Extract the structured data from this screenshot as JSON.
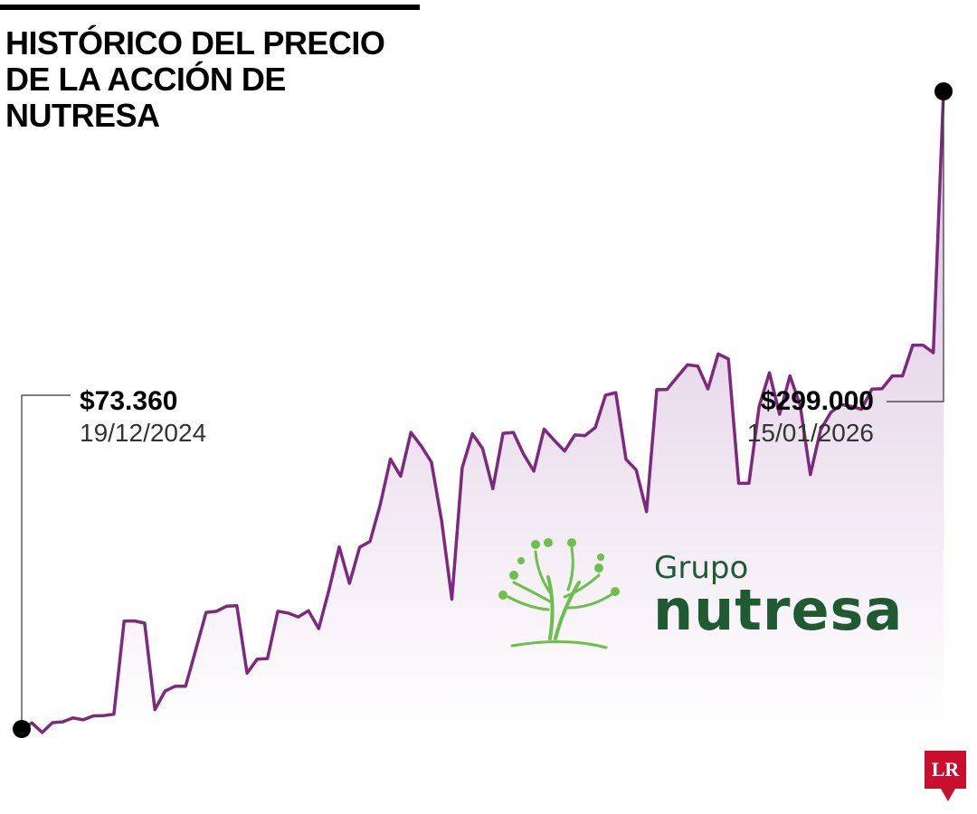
{
  "header": {
    "title": "HISTÓRICO DEL PRECIO DE LA ACCIÓN DE NUTRESA"
  },
  "chart_data": {
    "type": "area",
    "title": "HISTÓRICO DEL PRECIO DE LA ACCIÓN DE NUTRESA",
    "xlabel": "",
    "ylabel": "",
    "x_range": [
      "19/12/2024",
      "15/01/2026"
    ],
    "ylim": [
      73360,
      299000
    ],
    "grid": false,
    "legend": "none",
    "line_color": "#7b2a7e",
    "fill_color_top": "#dcc6e0",
    "fill_color_bottom": "#ffffff",
    "values": [
      73360,
      75500,
      72100,
      75600,
      75900,
      77300,
      76600,
      78000,
      78100,
      78600,
      111500,
      111600,
      110800,
      80200,
      86800,
      88500,
      88500,
      101500,
      114600,
      115000,
      116800,
      117000,
      93100,
      98100,
      98300,
      115000,
      114400,
      113000,
      115200,
      108900,
      122600,
      137800,
      124900,
      137700,
      139700,
      152700,
      168900,
      162800,
      178300,
      173500,
      167800,
      147000,
      119300,
      165800,
      177800,
      172600,
      158400,
      178000,
      178300,
      170600,
      164600,
      179500,
      175500,
      171700,
      177400,
      177200,
      180000,
      191500,
      192400,
      168800,
      165000,
      150300,
      193400,
      193500,
      197900,
      202200,
      201800,
      193700,
      206100,
      204300,
      160300,
      160300,
      187500,
      199400,
      184700,
      198300,
      188000,
      163400,
      179200,
      185400,
      188200,
      187500,
      186500,
      193600,
      193800,
      198300,
      198300,
      209200,
      209200,
      206500,
      299000
    ],
    "annotations": [
      {
        "price": "$73.360",
        "date": "19/12/2024",
        "point": "first"
      },
      {
        "price": "$299.000",
        "date": "15/01/2026",
        "point": "last"
      }
    ]
  },
  "brand": {
    "line1": "Grupo",
    "line2": "nutresa",
    "colors": {
      "dark": "#1f5a32",
      "light": "#6cbf4a"
    }
  },
  "footer_badge": "LR",
  "colors": {
    "accent": "#7b2a7e",
    "badge": "#c8102e"
  }
}
